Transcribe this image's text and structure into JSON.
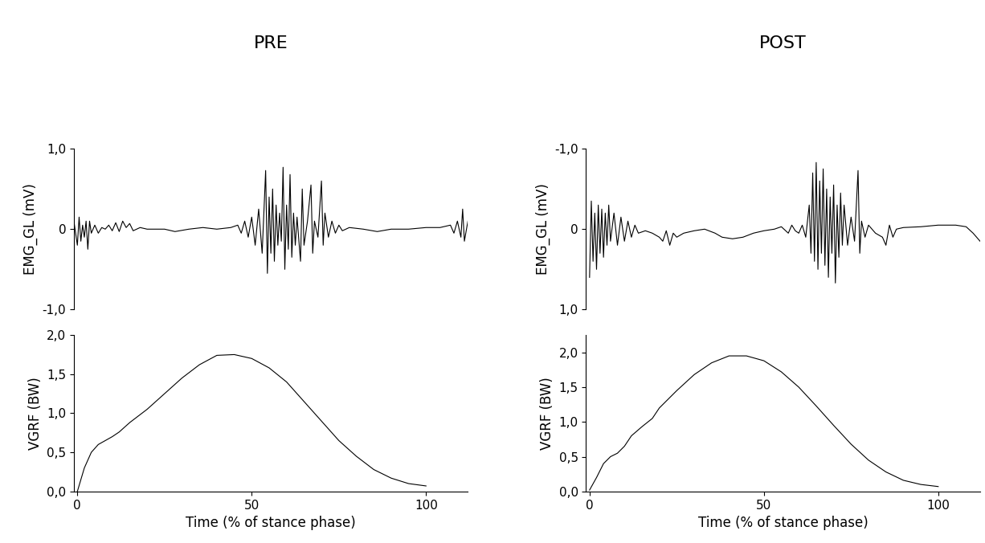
{
  "chart_data": [
    {
      "type": "line",
      "title": "PRE",
      "y_label": "EMG_GL (mV)",
      "color": "#000000",
      "tick_labels": "y",
      "xlim": [
        -1,
        112
      ],
      "ylim": [
        -1,
        1
      ],
      "yticks": [
        {
          "value": -1,
          "label": "-1,0"
        },
        0,
        {
          "value": 1,
          "label": "1,0"
        }
      ],
      "x": [
        -1,
        0,
        0.5,
        1,
        1.5,
        2,
        2.5,
        3,
        3.5,
        4,
        5,
        6,
        7,
        8,
        9,
        10,
        11,
        12,
        13,
        14,
        15,
        16,
        18,
        20,
        25,
        28,
        32,
        36,
        40,
        44,
        46,
        47,
        48,
        49,
        50,
        51,
        52,
        53,
        54,
        54.5,
        55,
        55.5,
        56,
        56.5,
        57,
        57.5,
        58,
        58.5,
        59,
        59.5,
        60,
        60.5,
        61,
        61.5,
        62,
        62.5,
        63,
        64,
        64.5,
        65,
        66,
        67,
        67.5,
        68,
        69,
        70,
        70.5,
        71,
        72,
        73,
        74,
        75,
        76,
        78,
        82,
        86,
        90,
        95,
        100,
        104,
        107,
        108,
        109,
        110,
        110.5,
        111,
        112
      ],
      "values": [
        0.1,
        -0.2,
        0.15,
        -0.15,
        0.05,
        -0.1,
        0.1,
        -0.25,
        0.1,
        -0.05,
        0.05,
        -0.05,
        0.02,
        0,
        0.05,
        -0.02,
        0.08,
        -0.03,
        0.1,
        0.02,
        0.07,
        -0.02,
        0.02,
        0,
        0,
        -0.03,
        0,
        0.02,
        0,
        0.02,
        0.05,
        -0.05,
        0.1,
        -0.1,
        0.15,
        -0.2,
        0.25,
        -0.3,
        0.73,
        -0.55,
        0.4,
        -0.3,
        0.5,
        -0.4,
        0.3,
        -0.2,
        0.2,
        -0.15,
        0.77,
        -0.5,
        0.3,
        -0.25,
        0.68,
        -0.35,
        0.2,
        -0.2,
        0.15,
        -0.4,
        0.5,
        -0.2,
        0.1,
        0.55,
        -0.3,
        0.1,
        -0.1,
        0.6,
        -0.2,
        0.2,
        -0.1,
        0.1,
        -0.05,
        0.05,
        -0.02,
        0.02,
        0,
        -0.03,
        0,
        0,
        0.02,
        0.02,
        0.05,
        -0.05,
        0.1,
        -0.1,
        0.25,
        -0.15,
        0.1
      ]
    },
    {
      "type": "line",
      "y_label": "VGRF (BW)",
      "x_label": "Time (% of stance phase)",
      "color": "#000000",
      "xlim": [
        -1,
        112
      ],
      "ylim": [
        0,
        2.0
      ],
      "xticks": [
        0,
        50,
        100
      ],
      "yticks": [
        {
          "value": 0,
          "label": "0,0"
        },
        {
          "value": 0.5,
          "label": "0,5"
        },
        {
          "value": 1.0,
          "label": "1,0"
        },
        {
          "value": 1.5,
          "label": "1,5"
        },
        {
          "value": 2.0,
          "label": "2,0"
        }
      ],
      "x": [
        0,
        2,
        4,
        6,
        8,
        10,
        12,
        15,
        20,
        25,
        30,
        35,
        40,
        45,
        50,
        55,
        60,
        65,
        70,
        75,
        80,
        85,
        90,
        95,
        100
      ],
      "values": [
        0.0,
        0.3,
        0.5,
        0.6,
        0.65,
        0.7,
        0.76,
        0.88,
        1.05,
        1.25,
        1.45,
        1.62,
        1.74,
        1.75,
        1.7,
        1.58,
        1.4,
        1.15,
        0.9,
        0.65,
        0.45,
        0.28,
        0.17,
        0.1,
        0.07
      ]
    },
    {
      "type": "line",
      "title": "POST",
      "y_label": "EMG_GL (mV)",
      "color": "#000000",
      "tick_labels": "y",
      "xlim": [
        -1,
        112
      ],
      "ylim": [
        1,
        -1
      ],
      "yticks": [
        {
          "value": -1,
          "label": "-1,0"
        },
        0,
        {
          "value": 1,
          "label": "1,0"
        }
      ],
      "x": [
        0,
        0.5,
        1,
        1.5,
        2,
        2.5,
        3,
        3.5,
        4,
        4.5,
        5,
        5.5,
        6,
        7,
        8,
        9,
        10,
        11,
        12,
        13,
        14,
        16,
        18,
        20,
        21,
        22,
        23,
        24,
        25,
        27,
        30,
        33,
        36,
        38,
        41,
        44,
        47,
        50,
        53,
        55,
        57,
        58,
        59,
        60,
        61,
        62,
        63,
        63.5,
        64,
        64.5,
        65,
        65.5,
        66,
        66.5,
        67,
        67.5,
        68,
        68.5,
        69,
        69.5,
        70,
        70.5,
        71,
        71.5,
        72,
        72.5,
        73,
        74,
        75,
        76,
        77,
        77.5,
        78,
        79,
        80,
        82,
        84,
        85,
        86,
        87,
        88,
        90,
        95,
        100,
        105,
        108,
        110,
        112
      ],
      "values": [
        0.6,
        -0.35,
        0.4,
        -0.2,
        0.5,
        -0.3,
        0.3,
        -0.25,
        0.35,
        -0.2,
        0.2,
        -0.3,
        0.15,
        -0.2,
        0.2,
        -0.15,
        0.15,
        -0.1,
        0.1,
        -0.05,
        0.05,
        0.02,
        0.05,
        0.1,
        0.15,
        0.02,
        0.2,
        0.05,
        0.1,
        0.05,
        0.02,
        0,
        0.05,
        0.1,
        0.12,
        0.1,
        0.05,
        0.02,
        0,
        -0.03,
        0.05,
        -0.05,
        0.02,
        0.05,
        -0.05,
        0.1,
        -0.3,
        0.3,
        -0.7,
        0.4,
        -0.83,
        0.5,
        -0.6,
        0.3,
        -0.75,
        0.45,
        -0.5,
        0.6,
        -0.4,
        0.3,
        -0.55,
        0.67,
        -0.3,
        0.35,
        -0.45,
        0.2,
        -0.3,
        0.2,
        -0.15,
        0.15,
        -0.73,
        0.3,
        -0.1,
        0.1,
        -0.05,
        0.05,
        0.1,
        0.2,
        -0.05,
        0.1,
        0,
        -0.02,
        -0.03,
        -0.05,
        -0.05,
        -0.03,
        0.05,
        0.15
      ]
    },
    {
      "type": "line",
      "y_label": "VGRF (BW)",
      "x_label": "Time (% of stance phase)",
      "color": "#000000",
      "xlim": [
        -1,
        112
      ],
      "ylim": [
        0,
        2.25
      ],
      "xticks": [
        0,
        50,
        100
      ],
      "yticks": [
        {
          "value": 0,
          "label": "0,0"
        },
        {
          "value": 0.5,
          "label": "0,5"
        },
        {
          "value": 1.0,
          "label": "1,0"
        },
        {
          "value": 1.5,
          "label": "1,5"
        },
        {
          "value": 2.0,
          "label": "2,0"
        }
      ],
      "x": [
        0,
        2,
        4,
        6,
        8,
        10,
        12,
        15,
        18,
        20,
        25,
        30,
        35,
        40,
        45,
        50,
        55,
        60,
        65,
        70,
        75,
        80,
        85,
        90,
        95,
        100
      ],
      "values": [
        0.02,
        0.2,
        0.4,
        0.5,
        0.55,
        0.65,
        0.8,
        0.93,
        1.05,
        1.2,
        1.45,
        1.68,
        1.85,
        1.95,
        1.95,
        1.88,
        1.72,
        1.5,
        1.23,
        0.95,
        0.68,
        0.45,
        0.28,
        0.16,
        0.1,
        0.07
      ]
    }
  ]
}
